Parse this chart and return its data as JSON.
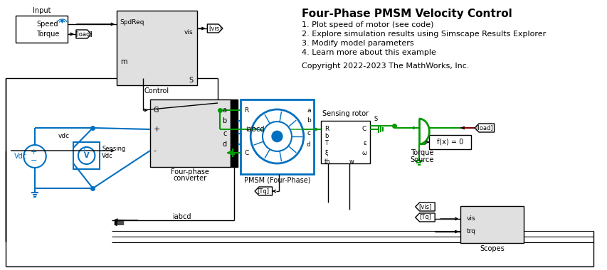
{
  "title": "Four-Phase PMSM Velocity Control",
  "bg_color": "#ffffff",
  "blue": "#0070c0",
  "green": "#009900",
  "darkred": "#7B0000",
  "black": "#000000",
  "gray": "#e0e0e0",
  "gray2": "#d0d0d0",
  "bullet_points": [
    "1. Plot speed of motor (see code)",
    "2. Explore simulation results using Simscape Results Explorer",
    "3. Modify model parameters",
    "4. Learn more about this example"
  ],
  "copyright": "Copyright 2022-2023 The MathWorks, Inc."
}
